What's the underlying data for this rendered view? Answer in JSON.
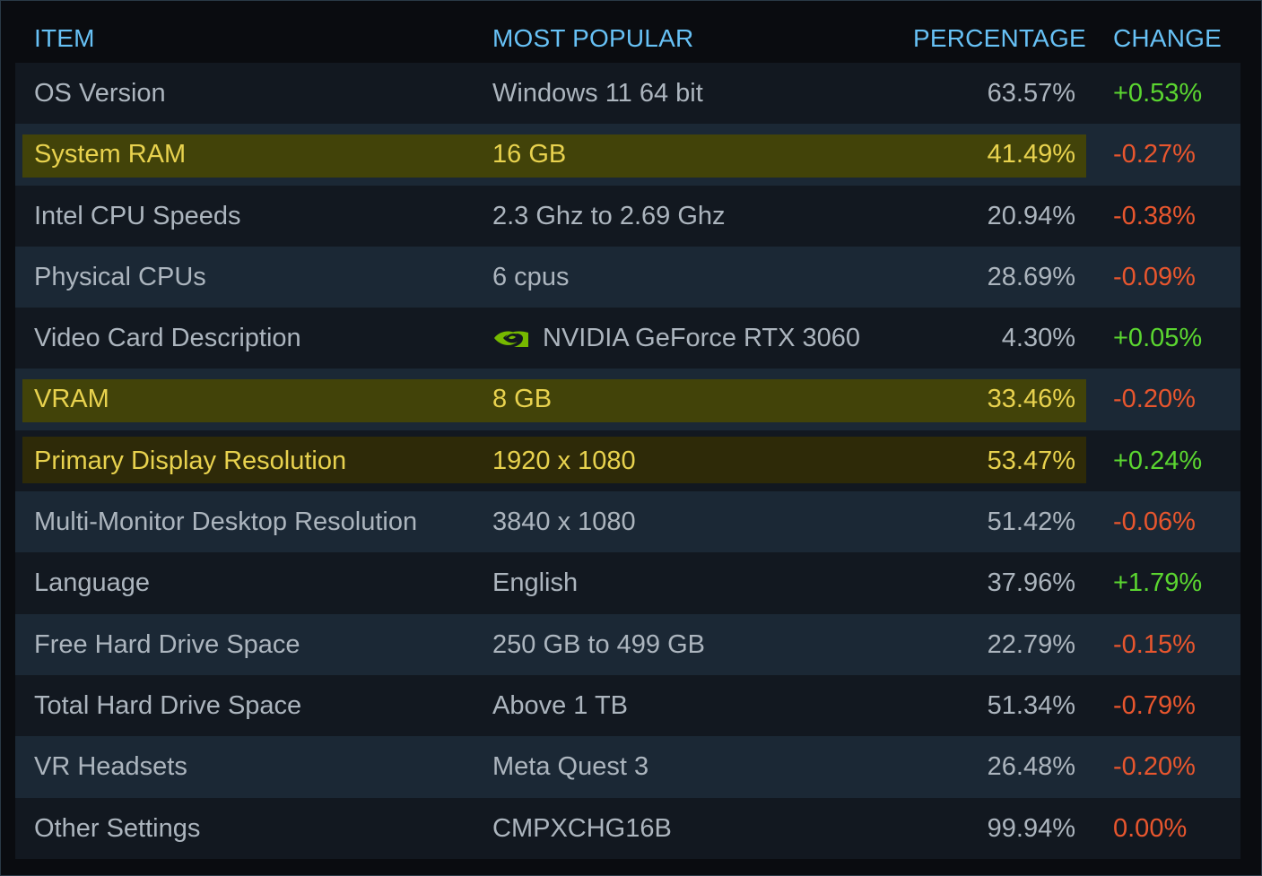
{
  "header": {
    "item": "ITEM",
    "popular": "MOST POPULAR",
    "percentage": "PERCENTAGE",
    "change": "CHANGE"
  },
  "colors": {
    "header_text": "#67c1f5",
    "text": "#acb5be",
    "highlight_text": "#e8d24e",
    "positive": "#5bd630",
    "negative": "#e8562e",
    "highlight_bg": "#424309",
    "nvidia_green": "#76b900"
  },
  "rows": [
    {
      "item": "OS Version",
      "popular": "Windows 11 64 bit",
      "percentage": "63.57%",
      "change": "+0.53%",
      "trend": "positive",
      "highlighted": false
    },
    {
      "item": "System RAM",
      "popular": "16 GB",
      "percentage": "41.49%",
      "change": "-0.27%",
      "trend": "negative",
      "highlighted": true
    },
    {
      "item": "Intel CPU Speeds",
      "popular": "2.3 Ghz to 2.69 Ghz",
      "percentage": "20.94%",
      "change": "-0.38%",
      "trend": "negative",
      "highlighted": false
    },
    {
      "item": "Physical CPUs",
      "popular": "6 cpus",
      "percentage": "28.69%",
      "change": "-0.09%",
      "trend": "negative",
      "highlighted": false
    },
    {
      "item": "Video Card Description",
      "popular": "NVIDIA GeForce RTX 3060",
      "icon": "nvidia-logo-icon",
      "percentage": "4.30%",
      "change": "+0.05%",
      "trend": "positive",
      "highlighted": false
    },
    {
      "item": "VRAM",
      "popular": "8 GB",
      "percentage": "33.46%",
      "change": "-0.20%",
      "trend": "negative",
      "highlighted": true
    },
    {
      "item": "Primary Display Resolution",
      "popular": "1920 x 1080",
      "percentage": "53.47%",
      "change": "+0.24%",
      "trend": "positive",
      "highlighted": true
    },
    {
      "item": "Multi-Monitor Desktop Resolution",
      "popular": "3840 x 1080",
      "percentage": "51.42%",
      "change": "-0.06%",
      "trend": "negative",
      "highlighted": false
    },
    {
      "item": "Language",
      "popular": "English",
      "percentage": "37.96%",
      "change": "+1.79%",
      "trend": "positive",
      "highlighted": false
    },
    {
      "item": "Free Hard Drive Space",
      "popular": "250 GB to 499 GB",
      "percentage": "22.79%",
      "change": "-0.15%",
      "trend": "negative",
      "highlighted": false
    },
    {
      "item": "Total Hard Drive Space",
      "popular": "Above 1 TB",
      "percentage": "51.34%",
      "change": "-0.79%",
      "trend": "negative",
      "highlighted": false
    },
    {
      "item": "VR Headsets",
      "popular": "Meta Quest 3",
      "percentage": "26.48%",
      "change": "-0.20%",
      "trend": "negative",
      "highlighted": false
    },
    {
      "item": "Other Settings",
      "popular": "CMPXCHG16B",
      "percentage": "99.94%",
      "change": "0.00%",
      "trend": "negative",
      "highlighted": false
    }
  ]
}
